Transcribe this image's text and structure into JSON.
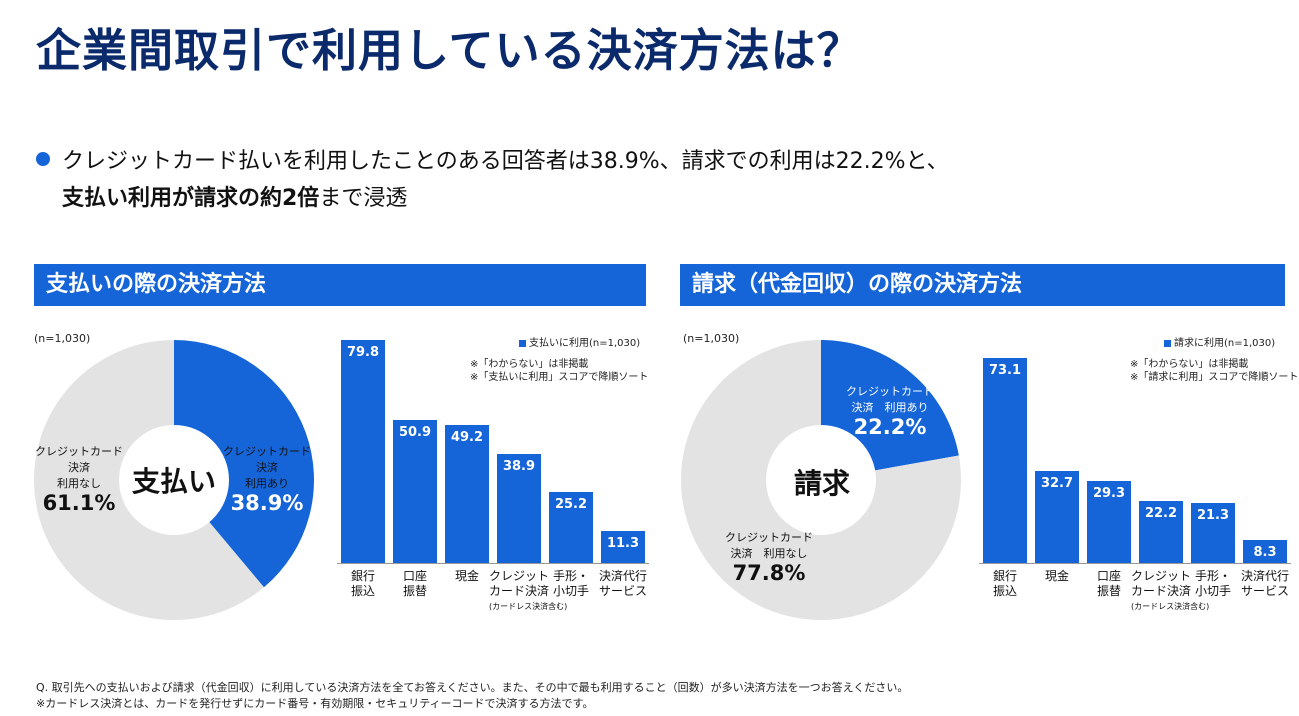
{
  "title": "企業間取引で利用している決済方法は？",
  "summary": {
    "line1": "クレジットカード払いを利用したことのある回答者は38.9%、請求での利用は22.2%と、",
    "line2_bold": "支払い利用が請求の約2倍",
    "line2_rest": "まで浸透"
  },
  "left": {
    "header": "支払いの際の決済方法",
    "n_label": "(n=1,030)",
    "donut": {
      "center": "支払い",
      "used_label1": "クレジットカード",
      "used_label2": "決済",
      "used_label3": "利用あり",
      "used_value": "38.9%",
      "unused_label1": "クレジットカード",
      "unused_label2": "決済",
      "unused_label3": "利用なし",
      "unused_value": "61.1%"
    },
    "legend": "支払いに利用(n=1,030)",
    "note1": "※「わからない」は非掲載",
    "note2": "※「支払いに利用」スコアで降順ソート",
    "cat_labels": [
      {
        "l1": "銀行",
        "l2": "振込",
        "sub": ""
      },
      {
        "l1": "口座",
        "l2": "振替",
        "sub": ""
      },
      {
        "l1": "現金",
        "l2": "",
        "sub": ""
      },
      {
        "l1": "クレジット",
        "l2": "カード決済",
        "sub": "(カードレス決済含む)"
      },
      {
        "l1": "手形・",
        "l2": "小切手",
        "sub": ""
      },
      {
        "l1": "決済代行",
        "l2": "サービス",
        "sub": ""
      }
    ]
  },
  "right": {
    "header": "請求（代金回収）の際の決済方法",
    "n_label": "(n=1,030)",
    "donut": {
      "center": "請求",
      "used_label1": "クレジットカード",
      "used_label2": "決済　利用あり",
      "used_value": "22.2%",
      "unused_label1": "クレジットカード",
      "unused_label2": "決済　利用なし",
      "unused_value": "77.8%"
    },
    "legend": "請求に利用(n=1,030)",
    "note1": "※「わからない」は非掲載",
    "note2": "※「請求に利用」スコアで降順ソート",
    "cat_labels": [
      {
        "l1": "銀行",
        "l2": "振込",
        "sub": ""
      },
      {
        "l1": "現金",
        "l2": "",
        "sub": ""
      },
      {
        "l1": "口座",
        "l2": "振替",
        "sub": ""
      },
      {
        "l1": "クレジット",
        "l2": "カード決済",
        "sub": "(カードレス決済含む)"
      },
      {
        "l1": "手形・",
        "l2": "小切手",
        "sub": ""
      },
      {
        "l1": "決済代行",
        "l2": "サービス",
        "sub": ""
      }
    ]
  },
  "footer": {
    "q": "Q. 取引先への支払いおよび請求（代金回収）に利用している決済方法を全てお答えください。また、その中で最も利用すること（回数）が多い決済方法を一つお答えください。",
    "note": "※カードレス決済とは、カードを発行せずにカード番号・有効期限・セキュリティーコードで決済する方法です。"
  },
  "colors": {
    "accent": "#1565d8",
    "gray": "#e3e3e3",
    "title": "#0b2a6b"
  },
  "chart_data": [
    {
      "type": "pie",
      "title": "支払いの際の決済方法",
      "categories": [
        "クレジットカード決済 利用あり",
        "クレジットカード決済 利用なし"
      ],
      "values": [
        38.9,
        61.1
      ],
      "colors": [
        "#1565d8",
        "#e3e3e3"
      ]
    },
    {
      "type": "bar",
      "title": "支払いの際の決済方法",
      "series_name": "支払いに利用(n=1,030)",
      "categories": [
        "銀行振込",
        "口座振替",
        "現金",
        "クレジットカード決済",
        "手形・小切手",
        "決済代行サービス"
      ],
      "values": [
        79.8,
        50.9,
        49.2,
        38.9,
        25.2,
        11.3
      ],
      "value_labels": [
        "79.8",
        "50.9",
        "49.2",
        "38.9",
        "25.2",
        "11.3"
      ],
      "ylim": [
        0,
        80
      ]
    },
    {
      "type": "pie",
      "title": "請求（代金回収）の際の決済方法",
      "categories": [
        "クレジットカード決済 利用あり",
        "クレジットカード決済 利用なし"
      ],
      "values": [
        22.2,
        77.8
      ],
      "colors": [
        "#1565d8",
        "#e3e3e3"
      ]
    },
    {
      "type": "bar",
      "title": "請求（代金回収）の際の決済方法",
      "series_name": "請求に利用(n=1,030)",
      "categories": [
        "銀行振込",
        "現金",
        "口座振替",
        "クレジットカード決済",
        "手形・小切手",
        "決済代行サービス"
      ],
      "values": [
        73.1,
        32.7,
        29.3,
        22.2,
        21.3,
        8.3
      ],
      "value_labels": [
        "73.1",
        "32.7",
        "29.3",
        "22.2",
        "21.3",
        "8.3"
      ],
      "ylim": [
        0,
        80
      ]
    }
  ]
}
